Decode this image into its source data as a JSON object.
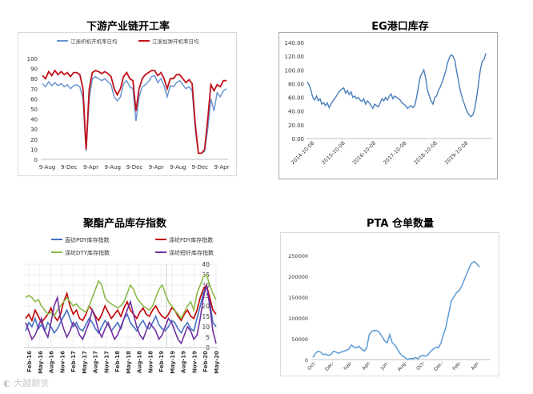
{
  "watermark": "大越期货",
  "chart_data": [
    {
      "id": "chart1",
      "type": "line",
      "title": "下游产业链开工率",
      "series": [
        {
          "name": "江浙织机开机率日均",
          "color": "#6a95cf",
          "values": [
            75,
            72,
            77,
            73,
            76,
            73,
            75,
            72,
            74,
            70,
            73,
            74,
            72,
            60,
            8,
            60,
            80,
            82,
            80,
            78,
            80,
            77,
            74,
            62,
            58,
            62,
            75,
            78,
            72,
            70,
            38,
            62,
            72,
            74,
            77,
            82,
            83,
            76,
            80,
            73,
            62,
            73,
            72,
            76,
            78,
            74,
            70,
            72,
            68,
            30,
            6,
            6,
            8,
            30,
            60,
            48,
            66,
            62,
            68,
            70
          ]
        },
        {
          "name": "江浙加弹开机率日均",
          "color": "#c0111a",
          "values": [
            83,
            80,
            87,
            83,
            88,
            84,
            87,
            84,
            86,
            82,
            86,
            86,
            84,
            70,
            10,
            70,
            86,
            88,
            87,
            85,
            87,
            85,
            82,
            70,
            64,
            70,
            82,
            86,
            80,
            78,
            48,
            70,
            80,
            84,
            86,
            88,
            88,
            83,
            86,
            80,
            70,
            80,
            80,
            84,
            84,
            80,
            76,
            79,
            75,
            35,
            6,
            6,
            10,
            40,
            74,
            68,
            74,
            72,
            78,
            78
          ]
        }
      ],
      "ylim": [
        0,
        100
      ],
      "yticks": [
        0,
        10,
        20,
        30,
        40,
        50,
        60,
        70,
        80,
        90,
        100
      ],
      "xtick_labels": [
        "9-Aug",
        "9-Dec",
        "9-Apr",
        "9-Aug",
        "9-Dec",
        "9-Apr",
        "9-Aug",
        "9-Dec",
        "9-Apr"
      ],
      "grid": false,
      "legend": "top"
    },
    {
      "id": "chart2",
      "type": "line",
      "title": "EG港口库存",
      "series": [
        {
          "name": "",
          "color": "#4a7ebb",
          "values": [
            82,
            78,
            70,
            60,
            56,
            62,
            55,
            58,
            50,
            52,
            48,
            52,
            45,
            50,
            55,
            58,
            62,
            67,
            70,
            72,
            74,
            66,
            70,
            64,
            68,
            60,
            62,
            58,
            60,
            56,
            54,
            58,
            50,
            55,
            52,
            48,
            44,
            50,
            48,
            46,
            52,
            58,
            55,
            60,
            56,
            62,
            65,
            58,
            62,
            60,
            58,
            56,
            52,
            50,
            48,
            44,
            46,
            48,
            45,
            48,
            60,
            75,
            90,
            95,
            100,
            88,
            70,
            62,
            55,
            50,
            60,
            62,
            70,
            75,
            82,
            90,
            98,
            110,
            118,
            122,
            120,
            114,
            98,
            84,
            70,
            60,
            52,
            44,
            38,
            34,
            32,
            35,
            44,
            60,
            80,
            100,
            112,
            115,
            124
          ]
        }
      ],
      "ylim": [
        0,
        140
      ],
      "yticks": [
        "0.00",
        "20.00",
        "40.00",
        "60.00",
        "80.00",
        "100.00",
        "120.00",
        "140.00"
      ],
      "xtick_labels": [
        "2014-10-08",
        "2015-10-08",
        "2016-10-08",
        "2017-10-08",
        "2018-10-08",
        "2019-10-08"
      ],
      "grid": false
    },
    {
      "id": "chart3",
      "type": "line",
      "title": "聚酯产品库存指数",
      "series": [
        {
          "name": "直纺POY库存指数",
          "color": "#4472c4",
          "axis": "left",
          "values": [
            8,
            12,
            10,
            14,
            9,
            11,
            8,
            12,
            10,
            7,
            9,
            12,
            15,
            18,
            14,
            10,
            12,
            9,
            8,
            11,
            14,
            12,
            9,
            7,
            10,
            13,
            11,
            8,
            10,
            12,
            9,
            14,
            16,
            12,
            10,
            8,
            11,
            13,
            10,
            9,
            12,
            15,
            11,
            9,
            8,
            10,
            13,
            12,
            9,
            7,
            10,
            12,
            9,
            8,
            14,
            20,
            26,
            30,
            22,
            12,
            10
          ]
        },
        {
          "name": "涤纶FDY库存指数",
          "color": "#c00000",
          "axis": "left",
          "values": [
            14,
            16,
            13,
            18,
            15,
            12,
            14,
            16,
            19,
            15,
            13,
            16,
            22,
            26,
            20,
            16,
            18,
            14,
            13,
            16,
            20,
            18,
            15,
            13,
            16,
            20,
            17,
            14,
            16,
            18,
            15,
            19,
            22,
            18,
            16,
            14,
            17,
            19,
            16,
            15,
            18,
            20,
            17,
            15,
            14,
            16,
            19,
            18,
            15,
            13,
            16,
            18,
            15,
            14,
            18,
            24,
            28,
            30,
            24,
            18,
            16
          ]
        },
        {
          "name": "涤纶DTY库存指数",
          "color": "#8db94a",
          "axis": "left",
          "values": [
            24,
            25,
            24,
            22,
            23,
            20,
            18,
            16,
            17,
            15,
            18,
            20,
            22,
            24,
            22,
            20,
            21,
            19,
            18,
            17,
            20,
            24,
            28,
            32,
            30,
            24,
            22,
            21,
            20,
            19,
            20,
            22,
            26,
            30,
            28,
            24,
            22,
            20,
            19,
            18,
            20,
            24,
            28,
            30,
            26,
            22,
            20,
            18,
            16,
            14,
            17,
            20,
            22,
            18,
            26,
            30,
            34,
            35,
            30,
            26,
            23
          ]
        },
        {
          "name": "涤纶短纤库存指数",
          "color": "#7030a0",
          "axis": "right",
          "values": [
            12,
            8,
            4,
            6,
            10,
            14,
            8,
            5,
            12,
            20,
            24,
            14,
            9,
            5,
            8,
            12,
            10,
            6,
            4,
            8,
            12,
            18,
            14,
            8,
            5,
            9,
            12,
            8,
            4,
            6,
            10,
            14,
            18,
            22,
            16,
            10,
            6,
            4,
            8,
            12,
            10,
            8,
            4,
            6,
            10,
            14,
            12,
            8,
            4,
            2,
            6,
            10,
            8,
            4,
            6,
            14,
            24,
            30,
            20,
            8,
            2
          ]
        }
      ],
      "ylim_right": [
        0,
        40
      ],
      "right_yticks": [
        0,
        5,
        10,
        15,
        20,
        25,
        30,
        35,
        40
      ],
      "xtick_labels": [
        "Feb-16",
        "May-16",
        "Aug-16",
        "Nov-16",
        "Feb-17",
        "May-17",
        "Aug-17",
        "Nov-17",
        "Feb-18",
        "May-18",
        "Aug-18",
        "Nov-18",
        "Feb-19",
        "May-19",
        "Aug-19",
        "Nov-19",
        "Feb-20",
        "May-20"
      ],
      "grid": true,
      "legend": "top"
    },
    {
      "id": "chart4",
      "type": "line",
      "title": "PTA 仓单数量",
      "series": [
        {
          "name": "",
          "color": "#5b9bd5",
          "values": [
            5000,
            15000,
            20000,
            18000,
            12000,
            13000,
            10000,
            12000,
            20000,
            18000,
            15000,
            18000,
            20000,
            22000,
            25000,
            35000,
            30000,
            28000,
            32000,
            25000,
            20000,
            28000,
            60000,
            68000,
            70000,
            70000,
            65000,
            55000,
            45000,
            40000,
            60000,
            40000,
            35000,
            25000,
            15000,
            8000,
            5000,
            0,
            3000,
            2000,
            5000,
            2000,
            8000,
            10000,
            8000,
            12000,
            20000,
            25000,
            30000,
            28000,
            40000,
            60000,
            80000,
            110000,
            140000,
            150000,
            160000,
            165000,
            175000,
            190000,
            205000,
            220000,
            232000,
            235000,
            230000,
            222000
          ]
        }
      ],
      "ylim": [
        0,
        250000
      ],
      "yticks": [
        0,
        50000,
        100000,
        150000,
        200000,
        250000
      ],
      "xtick_labels": [
        "Oct-",
        "Dec-",
        "Feb-",
        "Apr-",
        "Jun-",
        "Aug-",
        "Oct-",
        "Dec-",
        "Feb-",
        "Apr-"
      ],
      "grid": false
    }
  ]
}
